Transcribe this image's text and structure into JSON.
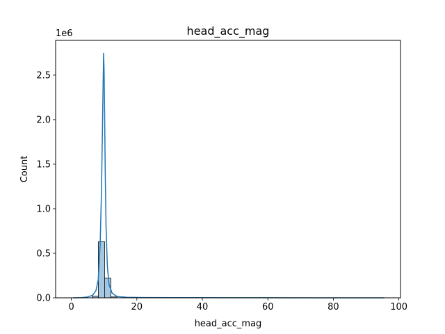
{
  "chart_data": {
    "type": "bar",
    "title": "head_acc_mag",
    "xlabel": "head_acc_mag",
    "ylabel": "Count",
    "y_offset_text": "1e6",
    "xlim": [
      -4.8,
      100.5
    ],
    "ylim": [
      0,
      2.89
    ],
    "y_unit_multiplier": 1000000,
    "x_ticks": [
      0,
      20,
      40,
      60,
      80,
      100
    ],
    "x_tick_labels": [
      "0",
      "20",
      "40",
      "60",
      "80",
      "100"
    ],
    "y_ticks": [
      0,
      0.5,
      1.0,
      1.5,
      2.0,
      2.5
    ],
    "y_tick_labels": [
      "0.0",
      "0.5",
      "1.0",
      "1.5",
      "2.0",
      "2.5"
    ],
    "bar_color": "#a6c7e1",
    "bar_edge_color": "#000000",
    "kde_color": "#1f77b4",
    "histogram": {
      "bin_width": 1.9,
      "bins": [
        {
          "x": 7.3,
          "value": 0.02
        },
        {
          "x": 9.2,
          "value": 0.63
        },
        {
          "x": 11.1,
          "value": 0.22
        },
        {
          "x": 13.0,
          "value": 0.01
        }
      ]
    },
    "kde_curve": {
      "x": [
        0.5,
        3,
        5,
        6.5,
        7.5,
        8.2,
        8.8,
        9.2,
        9.5,
        9.7,
        9.85,
        10.0,
        10.15,
        10.35,
        10.6,
        11.0,
        11.5,
        12.5,
        14,
        17,
        22,
        30,
        50,
        75,
        95.5
      ],
      "y": [
        0.0,
        0.002,
        0.01,
        0.03,
        0.08,
        0.2,
        0.6,
        1.2,
        1.9,
        2.4,
        2.75,
        2.55,
        2.1,
        1.4,
        0.8,
        0.35,
        0.15,
        0.05,
        0.015,
        0.006,
        0.003,
        0.002,
        0.001,
        0.0005,
        0.0
      ]
    }
  }
}
